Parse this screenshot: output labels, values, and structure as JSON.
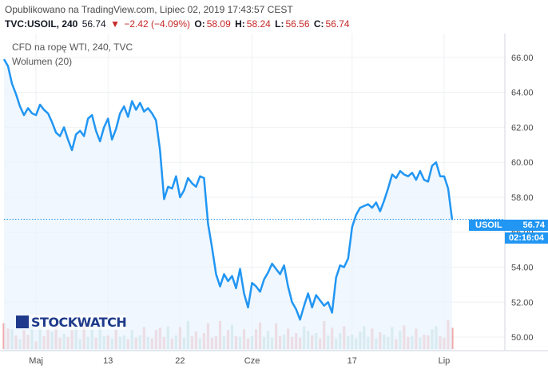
{
  "header": {
    "published": "Opublikowano na TradingView.com, Lipiec 02, 2019 17:43:57 CEST",
    "symbol": "TVC:USOIL, 240",
    "last": "56.74",
    "change_arrow": "▼",
    "change": "−2.42 (−4.09%)",
    "open_label": "O:",
    "open": "58.09",
    "high_label": "H:",
    "high": "58.24",
    "low_label": "L:",
    "low": "56.56",
    "close_label": "C:",
    "close": "56.74"
  },
  "legend": {
    "series_title": "CFD na ropę WTI, 240, TVC",
    "volume_title": "Wolumen (20)"
  },
  "watermark": "STOCKWATCH",
  "price_tag": {
    "symbol": "USOIL",
    "value": "56.74"
  },
  "countdown": "02:16:04",
  "colors": {
    "line": "#2196f3",
    "area": "#eaf4fd",
    "volume_up": "#9fd1cb",
    "volume_down": "#ef9a9a",
    "watermark": "#1f3a8a",
    "negative": "#c62828"
  },
  "chart_data": {
    "type": "line",
    "ylim": [
      49.5,
      67.0
    ],
    "yticks": [
      50.0,
      52.0,
      54.0,
      56.0,
      58.0,
      60.0,
      62.0,
      64.0,
      66.0
    ],
    "xticks": [
      {
        "label": "Maj",
        "x": 8
      },
      {
        "label": "13",
        "x": 26
      },
      {
        "label": "22",
        "x": 44
      },
      {
        "label": "Cze",
        "x": 62
      },
      {
        "label": "17",
        "x": 87
      },
      {
        "label": "Lip",
        "x": 110
      }
    ],
    "xlim": [
      0,
      114
    ],
    "last_price": 56.74,
    "series": [
      {
        "values": [
          65.9,
          65.5,
          64.5,
          63.9,
          63.2,
          62.7,
          63.1,
          62.8,
          62.7,
          63.3,
          63.0,
          62.8,
          62.3,
          61.7,
          61.5,
          62.0,
          61.3,
          60.7,
          61.6,
          61.8,
          61.5,
          62.5,
          62.7,
          61.8,
          61.2,
          62.0,
          62.5,
          61.3,
          61.9,
          62.8,
          63.2,
          62.6,
          63.5,
          63.0,
          63.4,
          62.9,
          63.1,
          62.8,
          62.4,
          60.7,
          57.9,
          58.6,
          58.5,
          59.2,
          58.0,
          58.4,
          59.1,
          58.8,
          58.6,
          59.2,
          59.1,
          56.5,
          55.1,
          53.6,
          52.9,
          53.6,
          53.2,
          53.5,
          52.8,
          53.9,
          52.5,
          51.7,
          53.1,
          52.9,
          52.6,
          53.3,
          53.7,
          54.2,
          53.9,
          53.6,
          54.1,
          52.9,
          52.0,
          51.6,
          51.0,
          51.8,
          52.5,
          51.7,
          52.4,
          52.1,
          51.8,
          52.0,
          51.4,
          53.4,
          54.1,
          54.0,
          54.5,
          56.3,
          57.0,
          57.4,
          57.5,
          57.6,
          57.4,
          57.7,
          57.2,
          57.8,
          58.5,
          59.3,
          59.1,
          59.5,
          59.3,
          59.2,
          59.4,
          59.0,
          59.5,
          59.0,
          58.9,
          59.8,
          60.0,
          59.2,
          59.2,
          58.5,
          56.7
        ]
      }
    ],
    "volume": {
      "values": [
        34,
        27,
        26,
        18,
        13,
        25,
        19,
        32,
        10,
        28,
        17,
        26,
        23,
        35,
        15,
        20,
        16,
        25,
        30,
        13,
        36,
        16,
        26,
        15,
        35,
        17,
        18,
        14,
        26,
        16,
        18,
        13,
        25,
        15,
        18,
        29,
        16,
        14,
        25,
        28,
        16,
        30,
        14,
        18,
        29,
        15,
        37,
        17,
        23,
        14,
        21,
        34,
        15,
        17,
        37,
        17,
        25,
        32,
        17,
        16,
        26,
        14,
        17,
        26,
        35,
        16,
        24,
        15,
        34,
        17,
        19,
        27,
        16,
        21,
        15,
        30,
        24,
        18,
        21,
        14,
        37,
        18,
        28,
        14,
        21,
        30,
        17,
        19,
        14,
        23,
        30,
        16,
        27,
        14,
        22,
        19,
        16,
        29,
        13,
        24,
        31,
        16,
        17,
        27,
        15,
        19,
        18,
        26,
        30,
        17,
        15,
        38,
        28
      ],
      "direction": [
        "d",
        "d",
        "u",
        "d",
        "u",
        "d",
        "d",
        "u",
        "d",
        "u",
        "d",
        "d",
        "u",
        "d",
        "d",
        "u",
        "d",
        "d",
        "u",
        "u",
        "d",
        "u",
        "u",
        "d",
        "u",
        "u",
        "d",
        "u",
        "d",
        "u",
        "u",
        "d",
        "u",
        "d",
        "u",
        "d",
        "u",
        "d",
        "d",
        "d",
        "d",
        "u",
        "d",
        "u",
        "d",
        "u",
        "u",
        "d",
        "d",
        "u",
        "d",
        "d",
        "d",
        "d",
        "d",
        "u",
        "d",
        "u",
        "d",
        "u",
        "d",
        "d",
        "u",
        "d",
        "d",
        "u",
        "u",
        "u",
        "d",
        "d",
        "u",
        "d",
        "d",
        "d",
        "d",
        "u",
        "u",
        "d",
        "u",
        "d",
        "d",
        "u",
        "d",
        "u",
        "u",
        "d",
        "u",
        "u",
        "u",
        "u",
        "u",
        "u",
        "d",
        "u",
        "d",
        "u",
        "u",
        "u",
        "d",
        "u",
        "d",
        "d",
        "u",
        "d",
        "u",
        "d",
        "d",
        "u",
        "u",
        "d",
        "d",
        "d",
        "d"
      ]
    }
  }
}
